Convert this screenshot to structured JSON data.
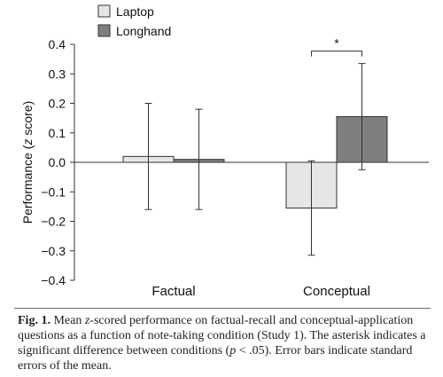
{
  "colors": {
    "laptop": "#e6e6e6",
    "longhand": "#7f7f7f",
    "stroke": "#333333"
  },
  "chart_data": {
    "type": "bar",
    "categories": [
      "Factual",
      "Conceptual"
    ],
    "series": [
      {
        "name": "Laptop",
        "values": [
          0.02,
          -0.155
        ],
        "error": [
          0.18,
          0.16
        ]
      },
      {
        "name": "Longhand",
        "values": [
          0.01,
          0.155
        ],
        "error": [
          0.17,
          0.18
        ]
      }
    ],
    "xlabel": "",
    "ylabel": "Performance (z score)",
    "ylim": [
      -0.4,
      0.4
    ],
    "yticks": [
      "0.4",
      "0.3",
      "0.2",
      "0.1",
      "0.0",
      "−0.1",
      "−0.2",
      "−0.3",
      "−0.4"
    ],
    "legend_position": "top-left",
    "grid": false,
    "annotation": "*"
  },
  "caption": {
    "label": "Fig. 1.",
    "text_a": " Mean ",
    "z": "z",
    "text_b": "-scored performance on factual-recall and conceptual-application questions as a function of note-taking condition (Study 1). The asterisk indicates a significant difference between conditions (",
    "p": "p",
    "text_c": " < .05). Error bars indicate standard errors of the mean."
  }
}
